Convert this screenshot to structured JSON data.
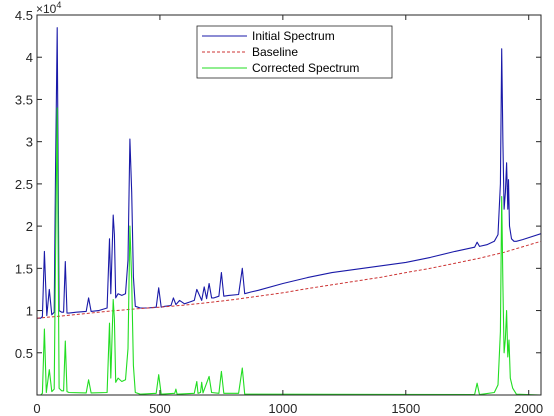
{
  "chart_data": {
    "type": "line",
    "title": "",
    "xlabel": "",
    "ylabel": "",
    "xlim": [
      0,
      2050
    ],
    "ylim": [
      0,
      45000
    ],
    "x_ticks": [
      0,
      500,
      1000,
      1500,
      2000
    ],
    "y_ticks": [
      5000,
      10000,
      15000,
      20000,
      25000,
      30000,
      35000,
      40000,
      45000
    ],
    "x_tick_labels": [
      "0",
      "500",
      "1000",
      "1500",
      "2000"
    ],
    "y_tick_labels": [
      "0.5",
      "1",
      "1.5",
      "2",
      "2.5",
      "3",
      "3.5",
      "4",
      "4.5"
    ],
    "y_exponent": {
      "base": "×10",
      "power": "4"
    },
    "grid": false,
    "legend_position": "top-center",
    "series": [
      {
        "name": "Initial Spectrum",
        "color": "#1a1aa8",
        "style": "solid",
        "x": [
          0,
          15,
          22,
          30,
          40,
          50,
          60,
          70,
          75,
          82,
          90,
          100,
          108,
          115,
          122,
          130,
          160,
          200,
          210,
          220,
          250,
          285,
          295,
          300,
          310,
          315,
          320,
          330,
          345,
          360,
          370,
          378,
          385,
          392,
          400,
          420,
          450,
          485,
          495,
          505,
          520,
          545,
          555,
          565,
          580,
          600,
          620,
          640,
          650,
          670,
          680,
          690,
          700,
          710,
          720,
          740,
          750,
          760,
          780,
          820,
          835,
          845,
          870,
          900,
          1000,
          1100,
          1200,
          1300,
          1400,
          1500,
          1600,
          1700,
          1780,
          1790,
          1800,
          1830,
          1860,
          1875,
          1885,
          1890,
          1895,
          1900,
          1905,
          1910,
          1915,
          1918,
          1922,
          1930,
          1940,
          1950,
          1975,
          2050
        ],
        "y": [
          9100,
          9100,
          9300,
          17000,
          9400,
          12500,
          9500,
          9800,
          25000,
          43500,
          10000,
          9800,
          9800,
          15800,
          9700,
          9700,
          9800,
          9900,
          11500,
          9900,
          10000,
          10300,
          18500,
          12000,
          21300,
          19000,
          11500,
          12000,
          11800,
          12000,
          16000,
          30300,
          24000,
          14000,
          10500,
          10300,
          10300,
          10400,
          12700,
          10400,
          10500,
          10600,
          11500,
          10700,
          11200,
          10800,
          11000,
          11200,
          12500,
          11200,
          12800,
          11400,
          13200,
          11500,
          11500,
          11700,
          14500,
          11700,
          11800,
          11900,
          15000,
          12000,
          12200,
          12400,
          13200,
          13900,
          14500,
          14900,
          15300,
          15700,
          16300,
          17000,
          17500,
          18100,
          17600,
          17800,
          18200,
          19000,
          25000,
          41000,
          30000,
          22000,
          24000,
          27500,
          22000,
          25500,
          20000,
          18500,
          18200,
          18200,
          18400,
          19100
        ]
      },
      {
        "name": "Baseline",
        "color": "#cc3333",
        "style": "dashed",
        "x": [
          0,
          100,
          200,
          300,
          400,
          500,
          600,
          700,
          800,
          900,
          1000,
          1100,
          1200,
          1300,
          1400,
          1500,
          1600,
          1700,
          1800,
          1900,
          2050
        ],
        "y": [
          9100,
          9350,
          9650,
          9950,
          10200,
          10400,
          10650,
          10950,
          11300,
          11700,
          12100,
          12600,
          13050,
          13500,
          13950,
          14500,
          15000,
          15600,
          16200,
          16900,
          18200
        ]
      },
      {
        "name": "Corrected Spectrum",
        "color": "#22dd22",
        "style": "solid",
        "x": [
          0,
          15,
          22,
          30,
          38,
          50,
          60,
          70,
          75,
          82,
          90,
          100,
          108,
          115,
          122,
          130,
          200,
          210,
          220,
          285,
          295,
          300,
          310,
          315,
          320,
          330,
          345,
          360,
          370,
          378,
          385,
          392,
          400,
          420,
          485,
          495,
          505,
          560,
          565,
          570,
          640,
          650,
          655,
          665,
          670,
          675,
          690,
          700,
          710,
          740,
          750,
          760,
          820,
          835,
          845,
          1780,
          1790,
          1800,
          1860,
          1875,
          1885,
          1890,
          1895,
          1900,
          1905,
          1910,
          1915,
          1920,
          1925,
          1935,
          1950,
          2050
        ],
        "y": [
          0,
          0,
          200,
          7800,
          300,
          3000,
          400,
          700,
          15000,
          34000,
          800,
          500,
          500,
          6400,
          400,
          300,
          250,
          1800,
          250,
          300,
          8500,
          2000,
          11300,
          9000,
          1500,
          2000,
          1600,
          1800,
          5500,
          20000,
          13500,
          3500,
          300,
          100,
          200,
          2400,
          100,
          200,
          700,
          100,
          200,
          1600,
          200,
          300,
          1500,
          250,
          1400,
          2200,
          300,
          200,
          2800,
          200,
          200,
          3200,
          100,
          50,
          1400,
          50,
          300,
          1200,
          7500,
          23500,
          13000,
          5000,
          6700,
          10000,
          4500,
          6500,
          2000,
          800,
          100,
          0
        ]
      }
    ]
  }
}
